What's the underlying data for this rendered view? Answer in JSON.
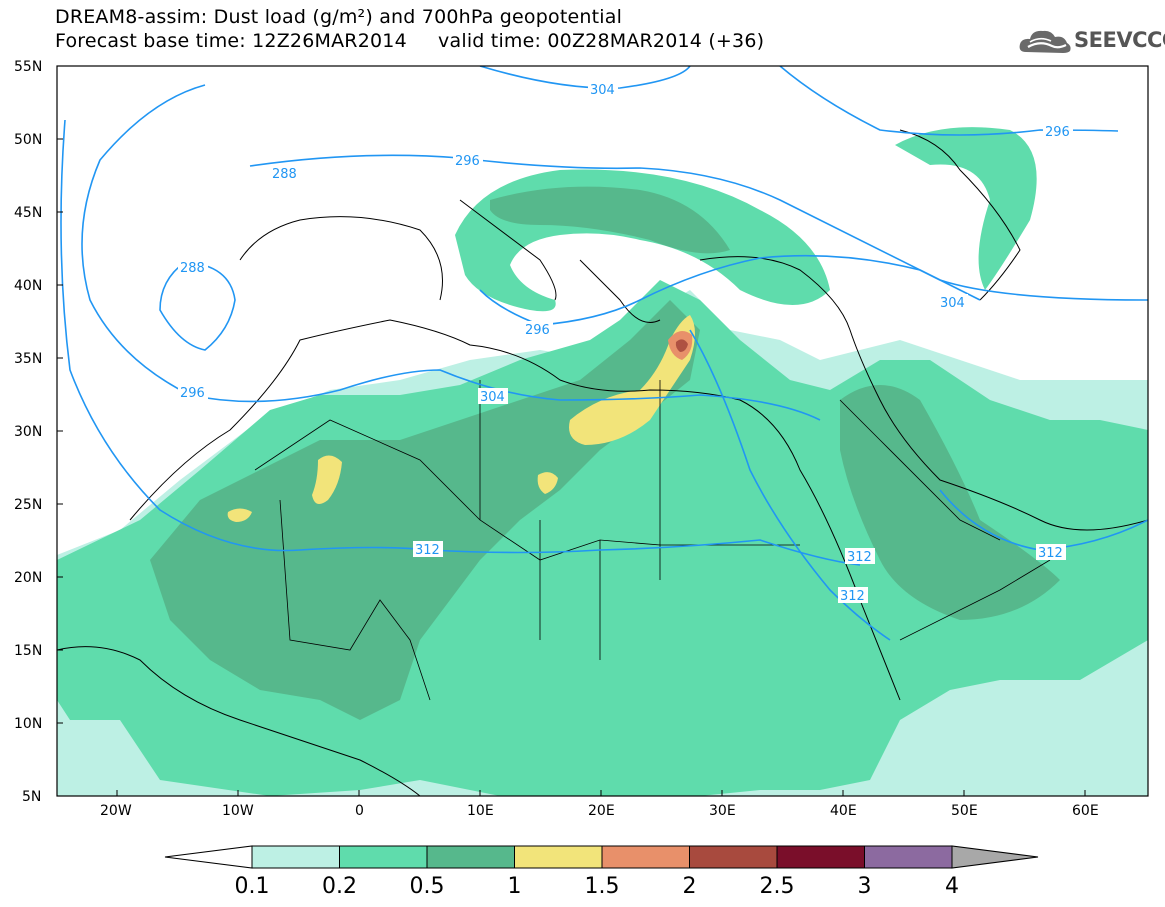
{
  "title": {
    "line1": "DREAM8-assim: Dust load (g/m²) and 700hPa geopotential",
    "line2": "Forecast base time: 12Z26MAR2014     valid time: 00Z28MAR2014 (+36)"
  },
  "logo": {
    "text": "SEEVCCC",
    "icon": "cloud-icon"
  },
  "axes": {
    "lat_ticks": [
      "55N",
      "50N",
      "45N",
      "40N",
      "35N",
      "30N",
      "25N",
      "20N",
      "15N",
      "10N",
      "5N"
    ],
    "lon_ticks": [
      "20W",
      "10W",
      "0",
      "10E",
      "20E",
      "30E",
      "40E",
      "50E",
      "60E"
    ]
  },
  "contours": {
    "color": "#2196f3",
    "labels": [
      "304",
      "296",
      "288",
      "288",
      "296",
      "296",
      "304",
      "312",
      "312",
      "312",
      "296",
      "304",
      "312"
    ]
  },
  "colorbar": {
    "labels": [
      "0.1",
      "0.2",
      "0.5",
      "1",
      "1.5",
      "2",
      "2.5",
      "3",
      "4"
    ],
    "colors": [
      "#bdf0e4",
      "#5fdcac",
      "#56b88c",
      "#f2e47a",
      "#e8906a",
      "#a84a3e",
      "#7a0e2a",
      "#8c6aa0",
      "#a8a8a8"
    ]
  }
}
